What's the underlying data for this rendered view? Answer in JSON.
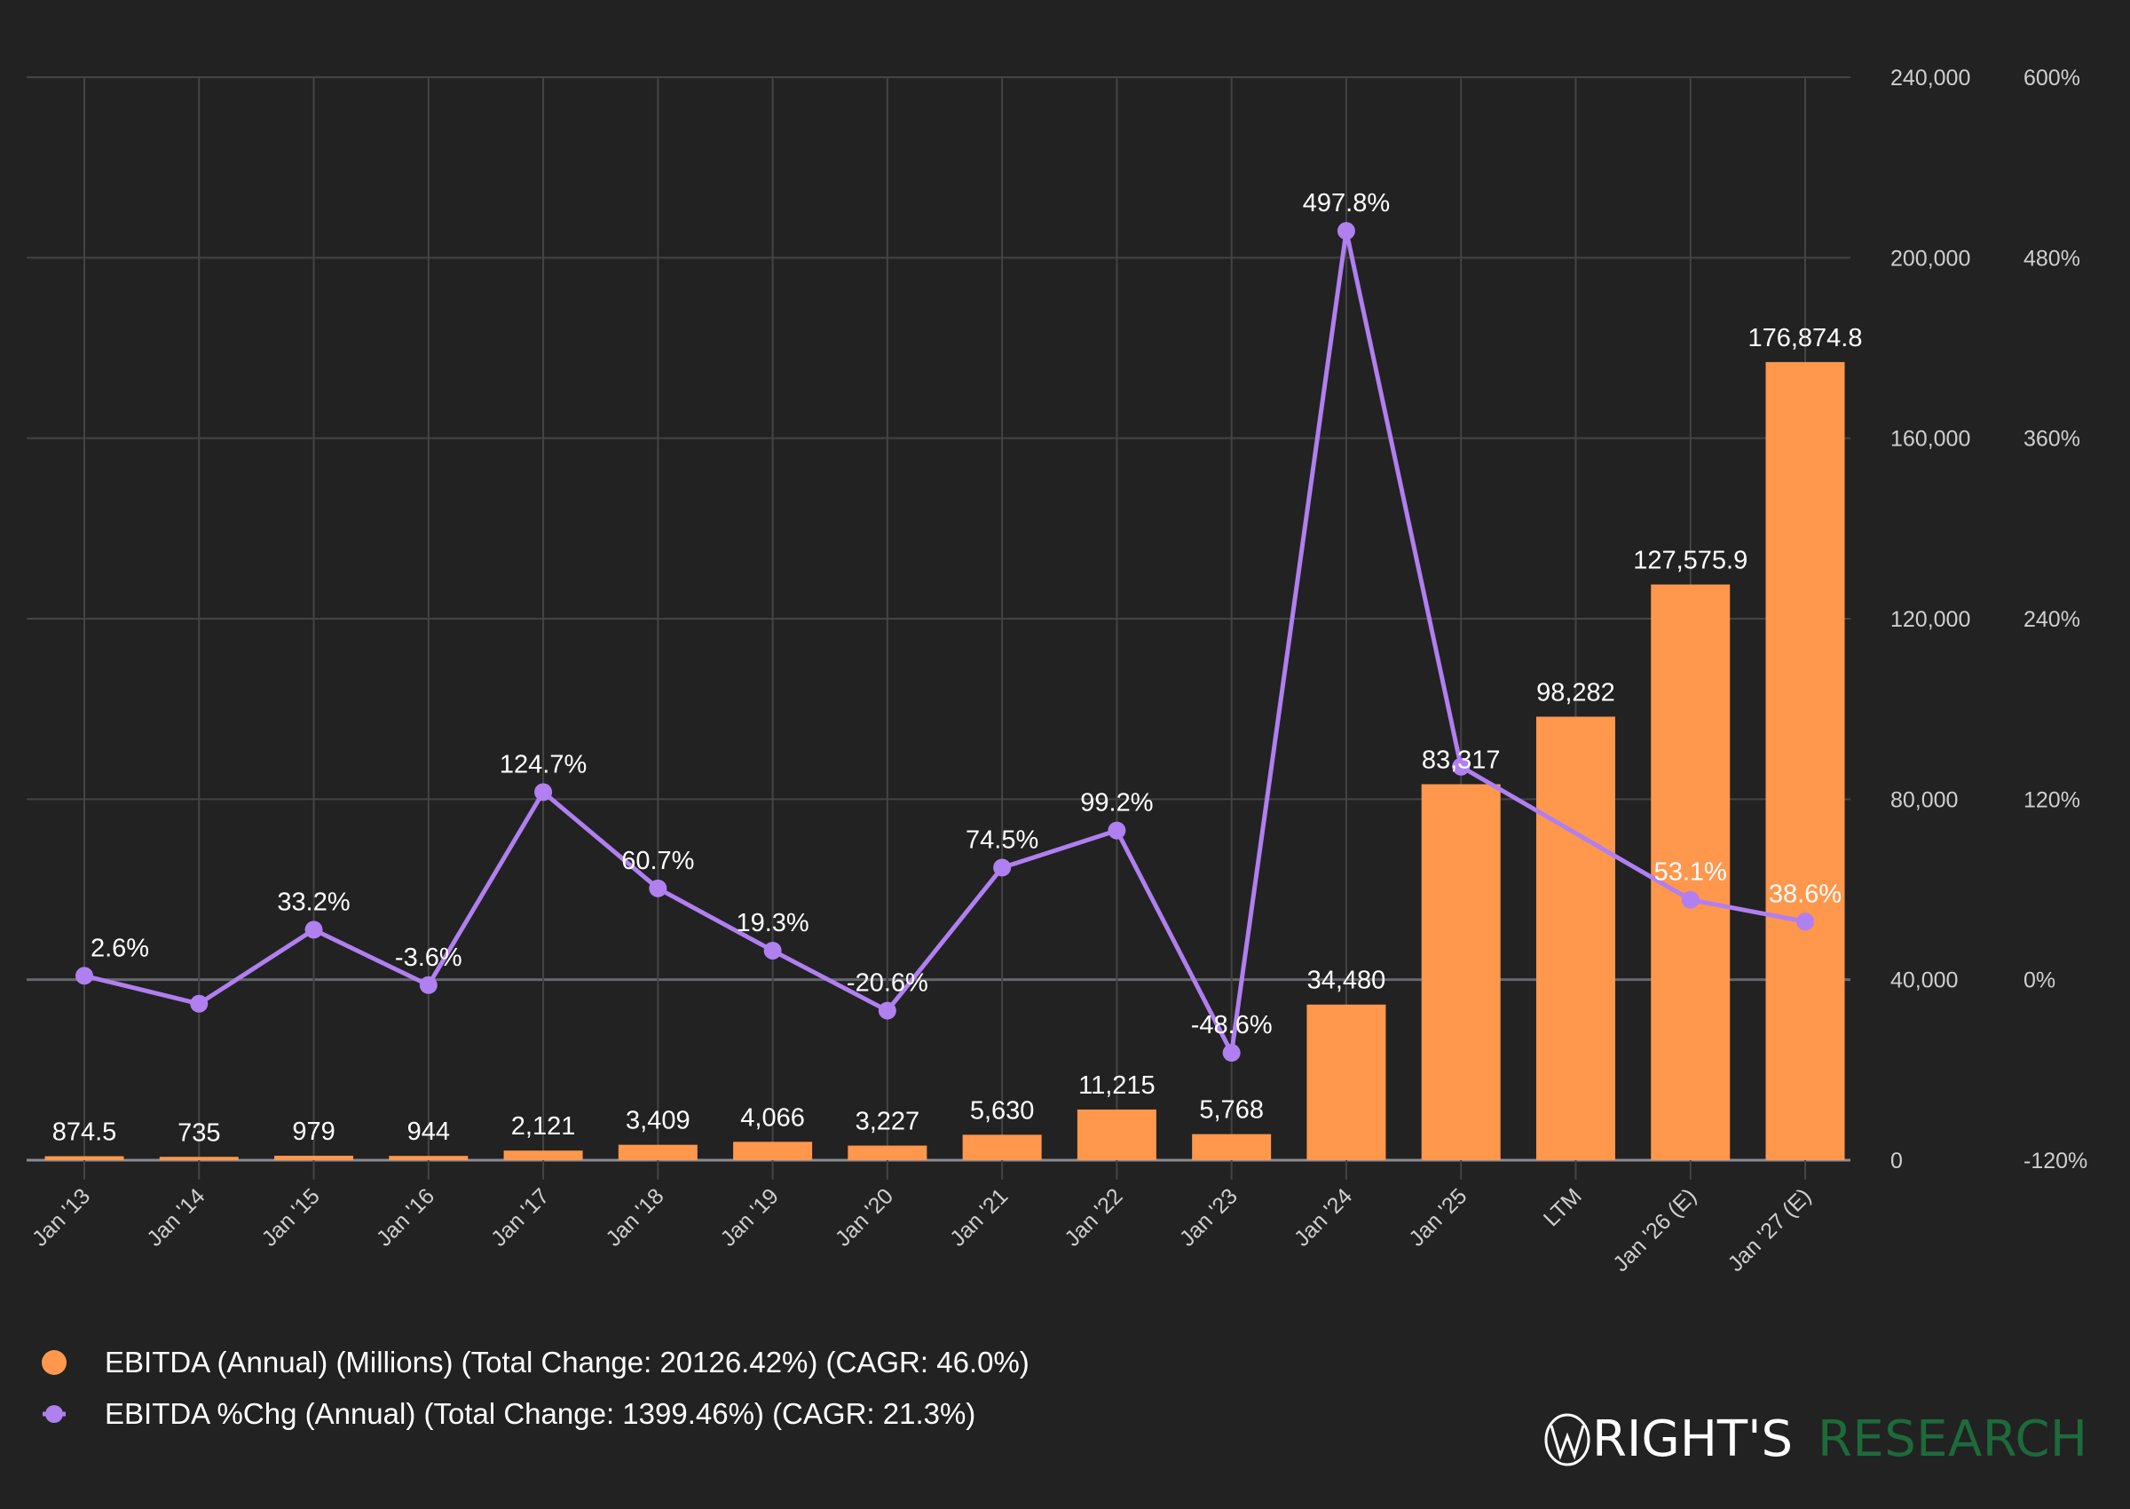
{
  "chart_data": {
    "type": "bar",
    "categories": [
      "Jan '13",
      "Jan '14",
      "Jan '15",
      "Jan '16",
      "Jan '17",
      "Jan '18",
      "Jan '19",
      "Jan '20",
      "Jan '21",
      "Jan '22",
      "Jan '23",
      "Jan '24",
      "Jan '25",
      "LTM",
      "Jan '26 (E)",
      "Jan '27 (E)"
    ],
    "series": [
      {
        "name": "EBITDA (Annual) (Millions) (Total Change: 20126.42%) (CAGR: 46.0%)",
        "type": "bar",
        "axis": "left",
        "color": "#ff974d",
        "values": [
          874.5,
          735,
          979,
          944,
          2121,
          3409,
          4066,
          3227,
          5630,
          11215,
          5768,
          34480,
          83317,
          98282,
          127575.9,
          176874.8
        ],
        "labels": [
          "874.5",
          "735",
          "979",
          "944",
          "2,121",
          "3,409",
          "4,066",
          "3,227",
          "5,630",
          "11,215",
          "5,768",
          "34,480",
          "83,317",
          "98,282",
          "127,575.9",
          "176,874.8"
        ]
      },
      {
        "name": "EBITDA %Chg (Annual) (Total Change: 1399.46%) (CAGR: 21.3%)",
        "type": "line",
        "axis": "right",
        "color": "#b07ff0",
        "values": [
          2.6,
          -16.0,
          33.2,
          -3.6,
          124.7,
          60.7,
          19.3,
          -20.6,
          74.5,
          99.2,
          -48.6,
          497.8,
          141.6,
          null,
          53.1,
          38.6
        ],
        "labels": [
          "2.6%",
          null,
          "33.2%",
          "-3.6%",
          "124.7%",
          "60.7%",
          "19.3%",
          "-20.6%",
          "74.5%",
          "99.2%",
          "-48.6%",
          "497.8%",
          null,
          null,
          "53.1%",
          "38.6%"
        ]
      }
    ],
    "left_axis": {
      "range": [
        0,
        240000
      ],
      "ticks": [
        0,
        40000,
        80000,
        120000,
        160000,
        200000,
        240000
      ],
      "tick_labels": [
        "0",
        "40,000",
        "80,000",
        "120,000",
        "160,000",
        "200,000",
        "240,000"
      ]
    },
    "right_axis": {
      "range": [
        -120,
        600
      ],
      "ticks": [
        -120,
        0,
        120,
        240,
        360,
        480,
        600
      ],
      "tick_labels": [
        "-120%",
        "0%",
        "120%",
        "240%",
        "360%",
        "480%",
        "600%"
      ]
    },
    "grid": true,
    "legend_position": "bottom-left"
  },
  "logo": {
    "part1": "RIGHT'S",
    "part2": "RESEARCH",
    "color1": "#ffffff",
    "color2": "#1d6a3a"
  }
}
